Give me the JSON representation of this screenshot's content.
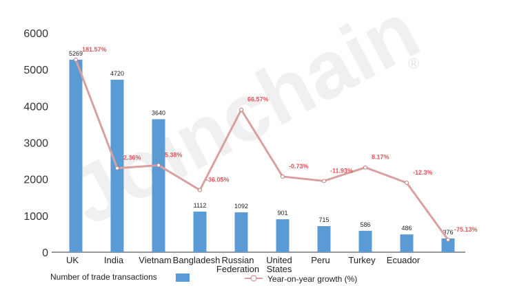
{
  "chart_data": {
    "type": "bar",
    "categories": [
      "UK",
      "India",
      "Vietnam",
      "Bangladesh",
      "Russian\nFederation",
      "United\nStates",
      "Peru",
      "Turkey",
      "Ecuador",
      ""
    ],
    "series": [
      {
        "name": "Number of trade transactions",
        "type": "bar",
        "axis": "left",
        "color": "#5b9bd5",
        "values": [
          5269,
          4720,
          3640,
          1112,
          1092,
          901,
          715,
          586,
          486,
          376
        ],
        "labels": [
          "5269",
          "4720",
          "3640",
          "1112",
          "1092",
          "901",
          "715",
          "586",
          "486",
          "376"
        ]
      },
      {
        "name": "Year-on-year growth (%)",
        "type": "line",
        "axis": "right",
        "color": "#d9a0a0",
        "values": [
          5269,
          2300,
          2380,
          1700,
          3900,
          2070,
          1950,
          2320,
          1900,
          340
        ],
        "labels": [
          "181.57%",
          "2.36%",
          "5.38%",
          "-36.05%",
          "66.57%",
          "-0.73%",
          "-11.93%",
          "8.17%",
          "-12.3%",
          "-75.13%"
        ]
      }
    ],
    "y_ticks": [
      "0",
      "1000",
      "2000",
      "3000",
      "4000",
      "5000",
      "6000"
    ],
    "ylim": [
      0,
      6000
    ],
    "grid": false,
    "legend_position": "bottom",
    "watermark": "Joinchain",
    "watermark_mark": "®"
  }
}
